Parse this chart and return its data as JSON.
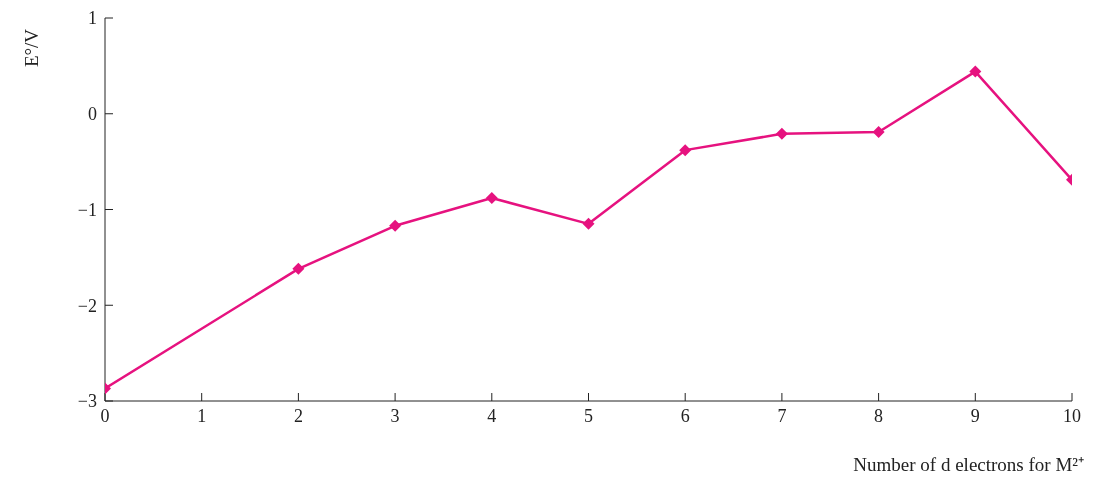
{
  "chart_data": {
    "type": "line",
    "xlabel": "Number of d electrons for M²⁺",
    "ylabel": "E°/V",
    "x": [
      0,
      2,
      3,
      4,
      5,
      6,
      7,
      8,
      9,
      10
    ],
    "series": [
      {
        "color": "#e6127f",
        "values": [
          -2.87,
          -1.62,
          -1.17,
          -0.88,
          -1.15,
          -0.38,
          -0.21,
          -0.19,
          0.44,
          -0.69
        ]
      }
    ],
    "xlim": [
      0,
      10
    ],
    "xticks": [
      0,
      1,
      2,
      3,
      4,
      5,
      6,
      7,
      8,
      9,
      10
    ],
    "ylim": [
      -3,
      1
    ],
    "yticks": [
      -3,
      -2,
      -1,
      0,
      1
    ],
    "grid": false,
    "legend": false,
    "marker": "diamond",
    "line_style": "solid"
  }
}
